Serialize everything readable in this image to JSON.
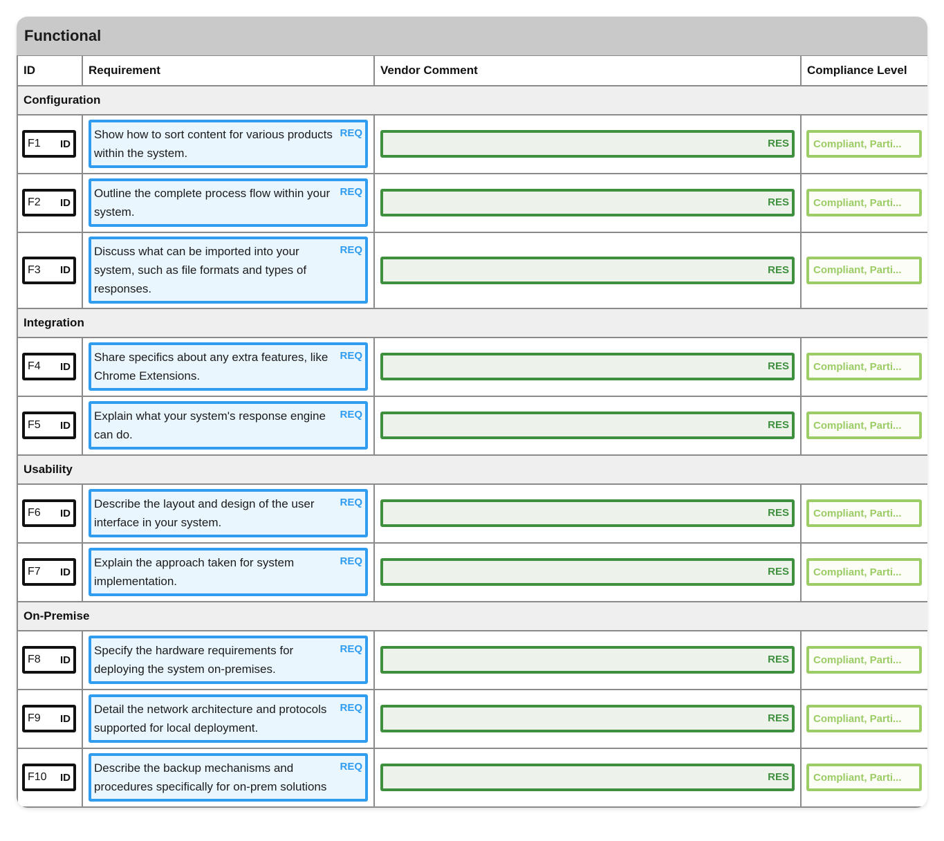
{
  "panel": {
    "title": "Functional"
  },
  "columns": {
    "id": "ID",
    "requirement": "Requirement",
    "vendor_comment": "Vendor Comment",
    "compliance_level": "Compliance Level"
  },
  "tags": {
    "id": "ID",
    "req": "REQ",
    "res": "RES"
  },
  "compliance_placeholder": "Compliant, Parti...",
  "colors": {
    "header_bg": "#c9c9c9",
    "requirement_border": "#2f9cf0",
    "response_border": "#3e8f3e",
    "compliance_border": "#9ccc65"
  },
  "sections": [
    {
      "title": "Configuration",
      "rows": [
        {
          "id": "F1",
          "requirement": "Show how to sort content for various products within the system."
        },
        {
          "id": "F2",
          "requirement": "Outline the complete process flow within your system."
        },
        {
          "id": "F3",
          "requirement": "Discuss what can be imported into your system, such as file formats and types of responses."
        }
      ]
    },
    {
      "title": "Integration",
      "rows": [
        {
          "id": "F4",
          "requirement": "Share specifics about any extra features, like Chrome Extensions."
        },
        {
          "id": "F5",
          "requirement": "Explain what your system's response engine can do."
        }
      ]
    },
    {
      "title": "Usability",
      "rows": [
        {
          "id": "F6",
          "requirement": "Describe the layout and design of the user interface in your system."
        },
        {
          "id": "F7",
          "requirement": "Explain the approach taken for system implementation."
        }
      ]
    },
    {
      "title": "On-Premise",
      "rows": [
        {
          "id": "F8",
          "requirement": "Specify the hardware requirements for deploying the system on-premises."
        },
        {
          "id": "F9",
          "requirement": "Detail the network architecture and protocols supported for local deployment."
        },
        {
          "id": "F10",
          "requirement": "Describe the backup mechanisms and procedures specifically for on-prem solutions"
        }
      ]
    }
  ]
}
